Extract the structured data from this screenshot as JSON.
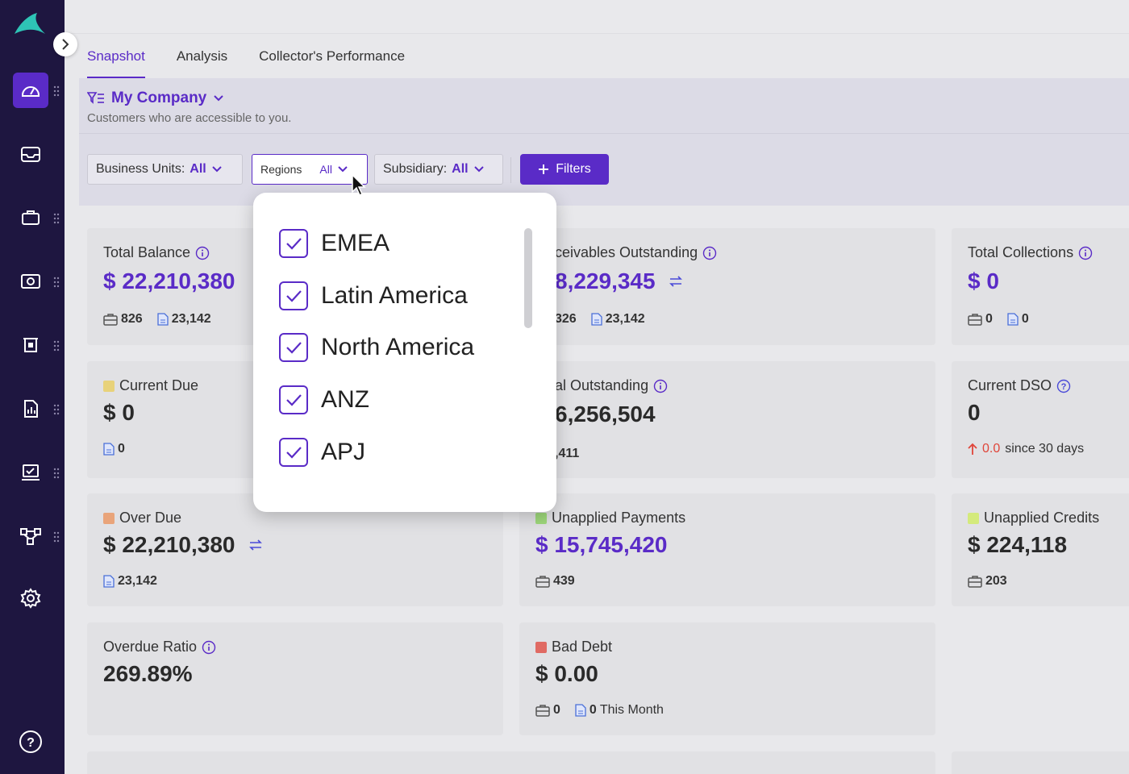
{
  "tabs": [
    "Snapshot",
    "Analysis",
    "Collector's Performance"
  ],
  "company": {
    "title": "My Company",
    "subtitle": "Customers who are accessible to you."
  },
  "filters": {
    "business_units": {
      "label": "Business Units:",
      "value": "All"
    },
    "regions": {
      "label": "Regions",
      "value": "All"
    },
    "subsidiary": {
      "label": "Subsidiary:",
      "value": "All"
    },
    "filters_button": "Filters"
  },
  "regions_dropdown": [
    "EMEA",
    "Latin America",
    "North America",
    "ANZ",
    "APJ"
  ],
  "cards": {
    "total_balance": {
      "label": "Total Balance",
      "value": "$ 22,210,380",
      "count1": "826",
      "count2": "23,142"
    },
    "receivables": {
      "label": "ceivables Outstanding",
      "value": "8,229,345",
      "count1": "326",
      "count2": "23,142"
    },
    "total_collections": {
      "label": "Total Collections",
      "value": "$ 0",
      "count1": "0",
      "count2": "0"
    },
    "current_due": {
      "label": "Current Due",
      "value": "$ 0",
      "count2": "0"
    },
    "total_outstanding": {
      "label": "al Outstanding",
      "value": "6,256,504",
      "count1": ",411"
    },
    "current_dso": {
      "label": "Current DSO",
      "value": "0",
      "change": "0.0",
      "since": "since 30 days"
    },
    "over_due": {
      "label": "Over Due",
      "value": "$ 22,210,380",
      "count2": "23,142"
    },
    "unapplied_payments": {
      "label": "Unapplied Payments",
      "value": "$ 15,745,420",
      "count1": "439"
    },
    "unapplied_credits": {
      "label": "Unapplied Credits",
      "value": "$ 224,118",
      "count1": "203"
    },
    "overdue_ratio": {
      "label": "Overdue Ratio",
      "value": "269.89%"
    },
    "bad_debt": {
      "label": "Bad Debt",
      "value": "$ 0.00",
      "count1": "0",
      "count2": "0",
      "count2_suffix": "This Month"
    }
  },
  "colors": {
    "accent": "#5a2bc7",
    "sidebar": "#1e1640",
    "current_due": "#e8d27a",
    "over_due": "#e9a47a",
    "unapplied_payments": "#9fd97c",
    "unapplied_credits": "#d4ea7c",
    "bad_debt": "#e06a63"
  }
}
